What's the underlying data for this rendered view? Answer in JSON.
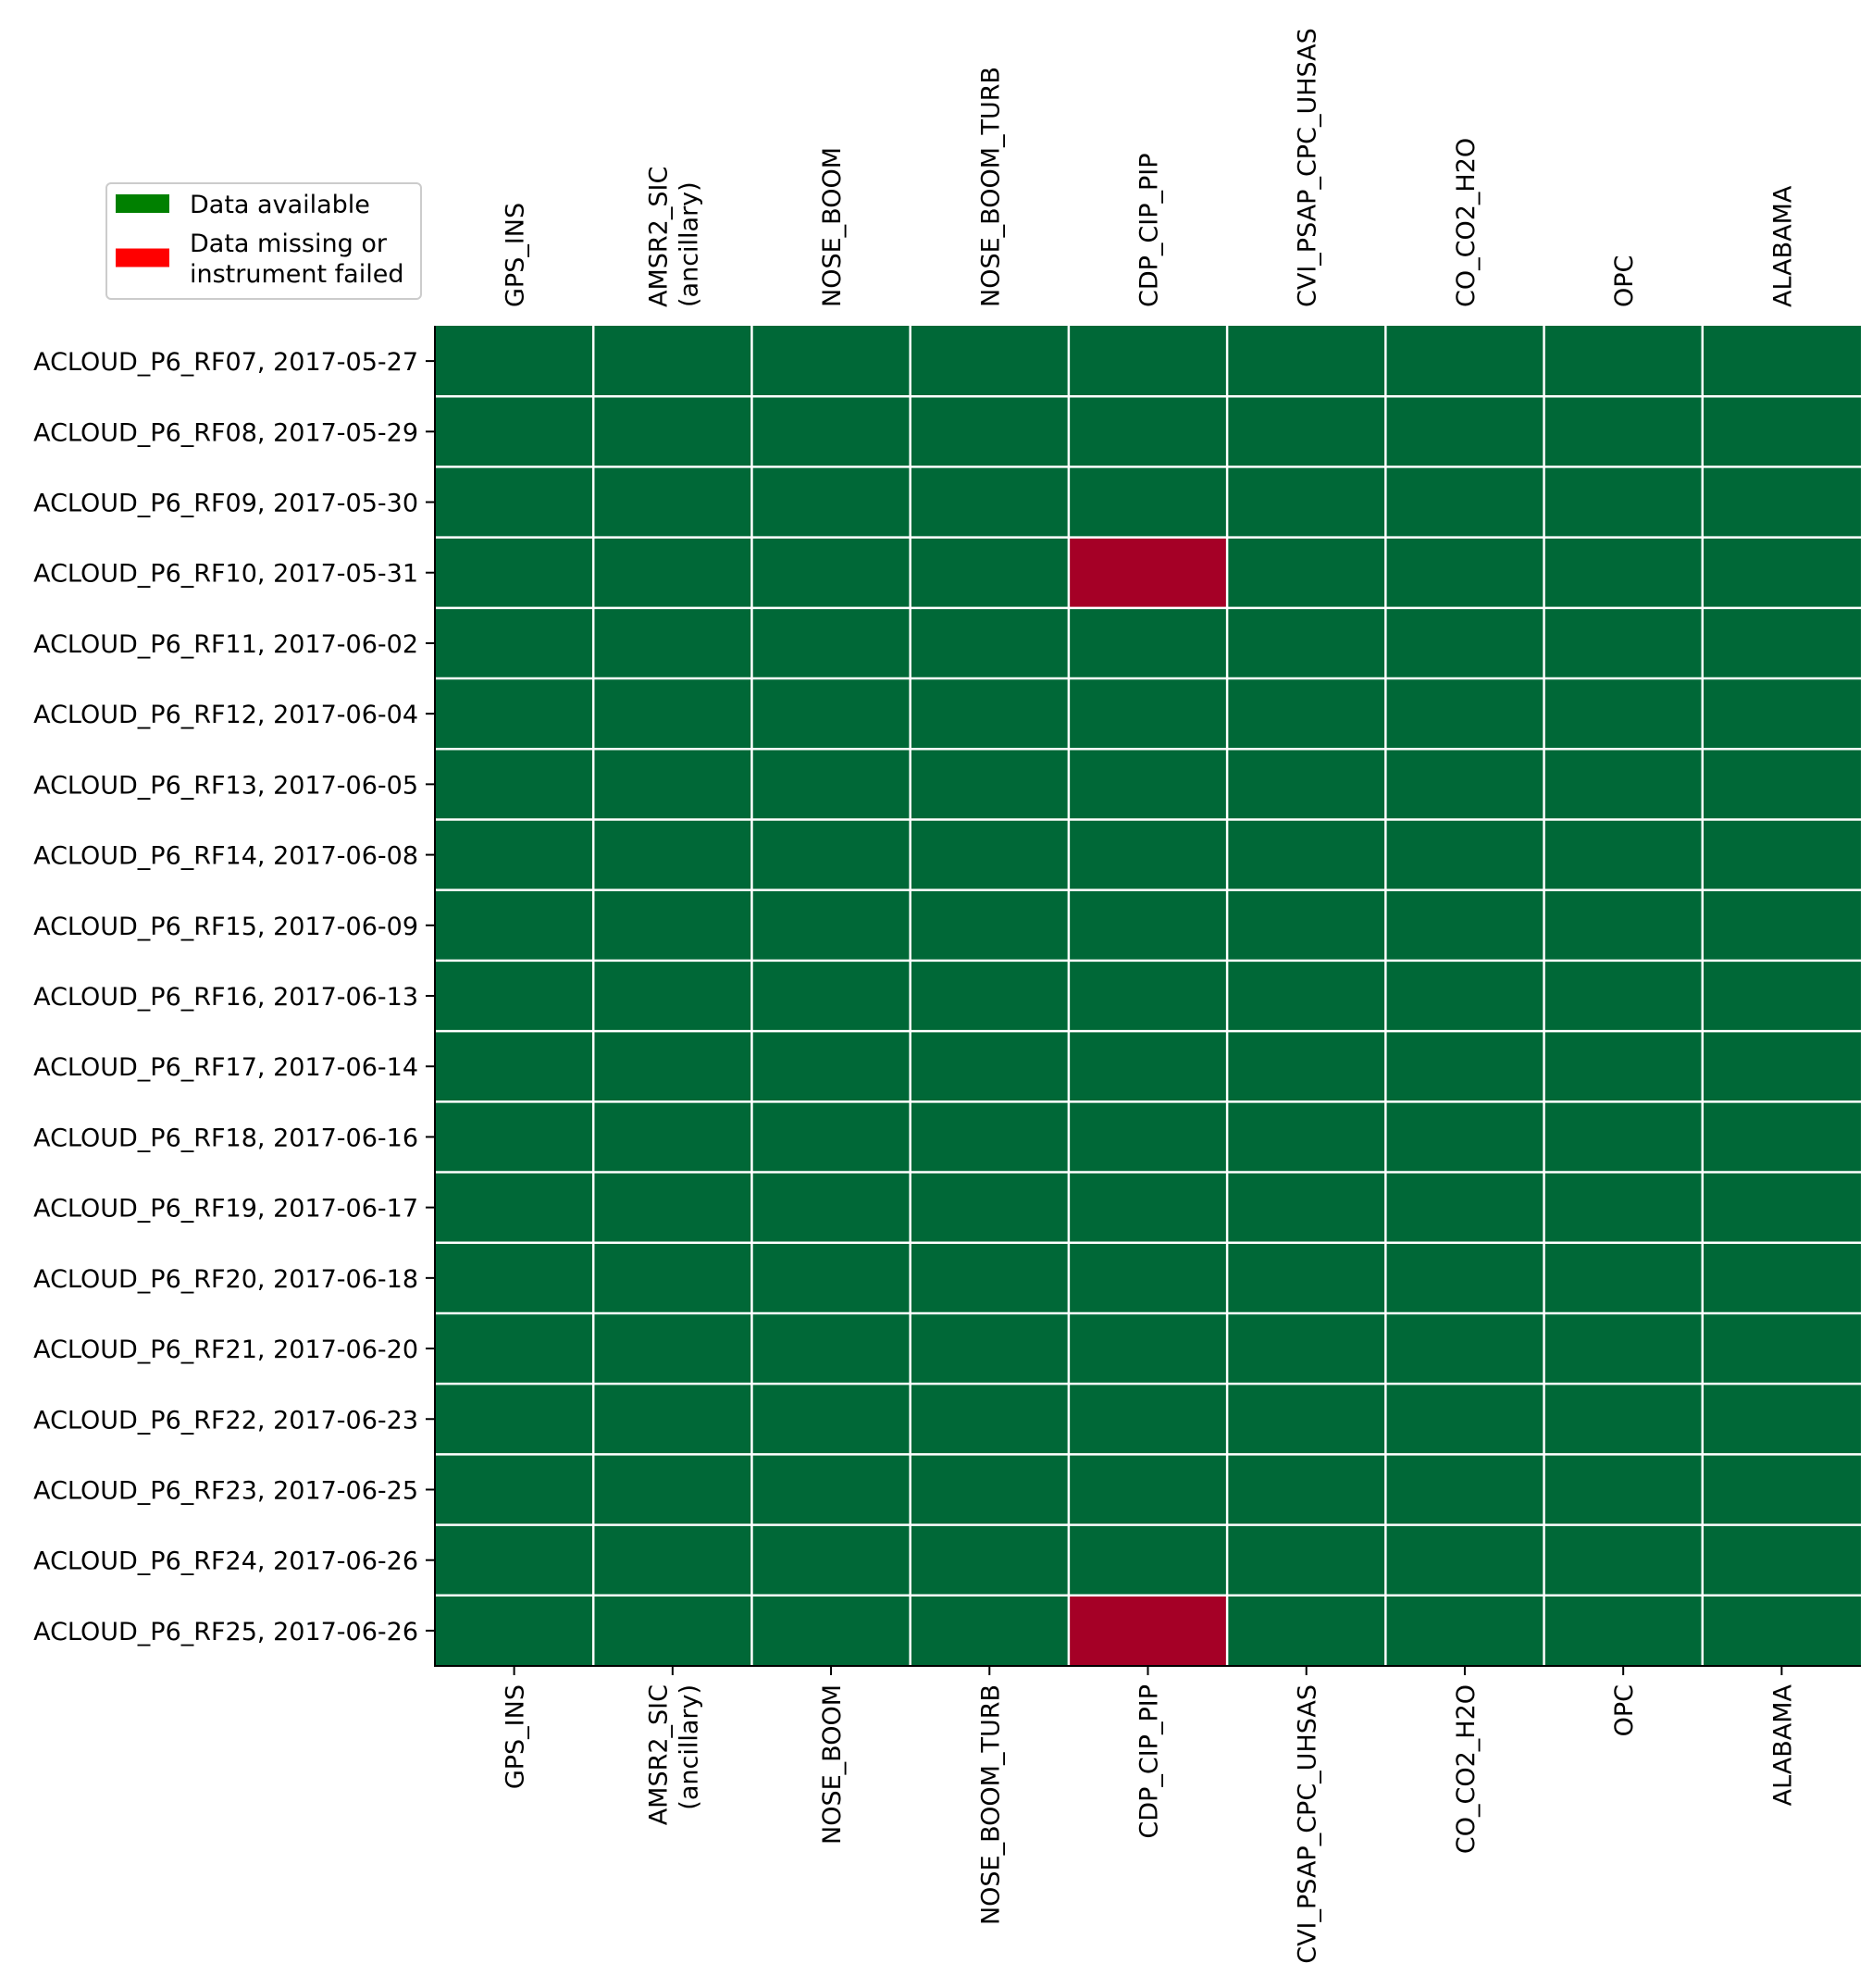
{
  "chart_data": {
    "type": "heatmap",
    "title": "",
    "xlabel": "",
    "ylabel": "",
    "x_tick_position": "top and bottom",
    "grid": true,
    "legend_position": "top-left",
    "categories_x": [
      [
        "GPS_INS"
      ],
      [
        "AMSR2_SIC",
        "(ancillary)"
      ],
      [
        "NOSE_BOOM"
      ],
      [
        "NOSE_BOOM_TURB"
      ],
      [
        "CDP_CIP_PIP"
      ],
      [
        "CVI_PSAP_CPC_UHSAS"
      ],
      [
        "CO_CO2_H2O"
      ],
      [
        "OPC"
      ],
      [
        "ALABAMA"
      ]
    ],
    "categories_y": [
      "ACLOUD_P6_RF07, 2017-05-27",
      "ACLOUD_P6_RF08, 2017-05-29",
      "ACLOUD_P6_RF09, 2017-05-30",
      "ACLOUD_P6_RF10, 2017-05-31",
      "ACLOUD_P6_RF11, 2017-06-02",
      "ACLOUD_P6_RF12, 2017-06-04",
      "ACLOUD_P6_RF13, 2017-06-05",
      "ACLOUD_P6_RF14, 2017-06-08",
      "ACLOUD_P6_RF15, 2017-06-09",
      "ACLOUD_P6_RF16, 2017-06-13",
      "ACLOUD_P6_RF17, 2017-06-14",
      "ACLOUD_P6_RF18, 2017-06-16",
      "ACLOUD_P6_RF19, 2017-06-17",
      "ACLOUD_P6_RF20, 2017-06-18",
      "ACLOUD_P6_RF21, 2017-06-20",
      "ACLOUD_P6_RF22, 2017-06-23",
      "ACLOUD_P6_RF23, 2017-06-25",
      "ACLOUD_P6_RF24, 2017-06-26",
      "ACLOUD_P6_RF25, 2017-06-26"
    ],
    "values": [
      [
        1,
        1,
        1,
        1,
        1,
        1,
        1,
        1,
        1
      ],
      [
        1,
        1,
        1,
        1,
        1,
        1,
        1,
        1,
        1
      ],
      [
        1,
        1,
        1,
        1,
        1,
        1,
        1,
        1,
        1
      ],
      [
        1,
        1,
        1,
        1,
        0,
        1,
        1,
        1,
        1
      ],
      [
        1,
        1,
        1,
        1,
        1,
        1,
        1,
        1,
        1
      ],
      [
        1,
        1,
        1,
        1,
        1,
        1,
        1,
        1,
        1
      ],
      [
        1,
        1,
        1,
        1,
        1,
        1,
        1,
        1,
        1
      ],
      [
        1,
        1,
        1,
        1,
        1,
        1,
        1,
        1,
        1
      ],
      [
        1,
        1,
        1,
        1,
        1,
        1,
        1,
        1,
        1
      ],
      [
        1,
        1,
        1,
        1,
        1,
        1,
        1,
        1,
        1
      ],
      [
        1,
        1,
        1,
        1,
        1,
        1,
        1,
        1,
        1
      ],
      [
        1,
        1,
        1,
        1,
        1,
        1,
        1,
        1,
        1
      ],
      [
        1,
        1,
        1,
        1,
        1,
        1,
        1,
        1,
        1
      ],
      [
        1,
        1,
        1,
        1,
        1,
        1,
        1,
        1,
        1
      ],
      [
        1,
        1,
        1,
        1,
        1,
        1,
        1,
        1,
        1
      ],
      [
        1,
        1,
        1,
        1,
        1,
        1,
        1,
        1,
        1
      ],
      [
        1,
        1,
        1,
        1,
        1,
        1,
        1,
        1,
        1
      ],
      [
        1,
        1,
        1,
        1,
        1,
        1,
        1,
        1,
        1
      ],
      [
        1,
        1,
        1,
        1,
        0,
        1,
        1,
        1,
        1
      ]
    ],
    "value_colors": {
      "1": "#006837",
      "0": "#a50026"
    },
    "legend": [
      {
        "label": [
          "Data available"
        ],
        "color": "#008000"
      },
      {
        "label": [
          "Data missing or",
          "instrument failed"
        ],
        "color": "#ff0000"
      }
    ]
  }
}
